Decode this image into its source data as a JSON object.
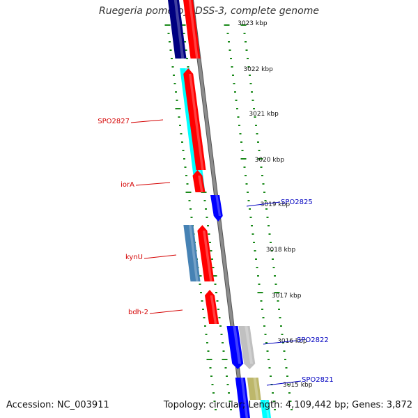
{
  "title": "Ruegeria pomeroyi DSS-3, complete genome",
  "footer": {
    "accession": "Accession: NC_003911",
    "summary": "Topology: circular; Length: 4,109,442 bp; Genes: 3,872"
  },
  "ruler": {
    "unit": "kbp",
    "labels": [
      "3023 kbp",
      "3022 kbp",
      "3021 kbp",
      "3020 kbp",
      "3019 kbp",
      "3018 kbp",
      "3017 kbp",
      "3016 kbp",
      "3015 kbp"
    ]
  },
  "gene_labels": [
    {
      "name": "SPO2827",
      "strand": "minus"
    },
    {
      "name": "iorA",
      "strand": "minus"
    },
    {
      "name": "kynU",
      "strand": "minus"
    },
    {
      "name": "bdh-2",
      "strand": "minus"
    },
    {
      "name": "SPO2825",
      "strand": "plus"
    },
    {
      "name": "SPO2822",
      "strand": "plus"
    },
    {
      "name": "SPO2821",
      "strand": "plus"
    }
  ],
  "colors": {
    "backbone": "#8c8c8c",
    "tick": "#1a8a1a",
    "minus_label": "#d40000",
    "plus_label": "#0000c0",
    "red": "#ff0000",
    "cyan": "#00ffff",
    "navy": "#000080",
    "steelblue": "#4682b4",
    "blue": "#0000ff",
    "silver": "#c0c0c0",
    "khaki": "#bdb76b"
  }
}
